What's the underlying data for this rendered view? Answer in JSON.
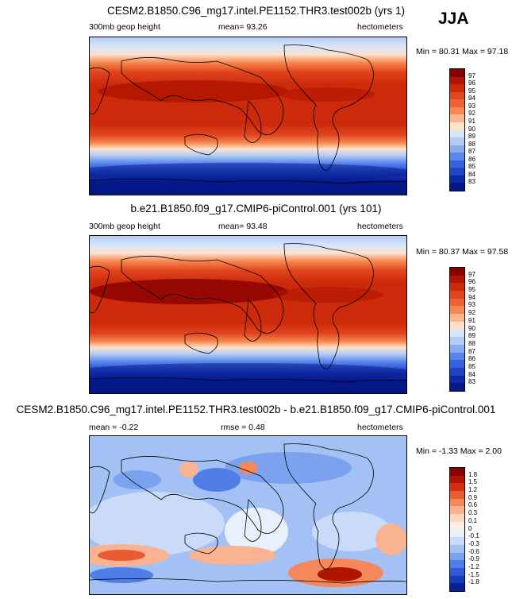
{
  "season": "JJA",
  "panels": [
    {
      "title": "CESM2.B1850.C96_mg17.intel.PE1152.THR3.test002b (yrs 1)",
      "left_label": "300mb geop height",
      "center_label": "mean=  93.26",
      "right_label": "hectometers",
      "minmax": "Min =  80.31 Max =  97.18",
      "colorbar": {
        "labels": [
          "97",
          "96",
          "95",
          "94",
          "93",
          "92",
          "91",
          "90",
          "89",
          "88",
          "87",
          "86",
          "85",
          "84",
          "83"
        ],
        "colors": [
          "#8a0000",
          "#b01500",
          "#cc2a0b",
          "#e0451d",
          "#f06235",
          "#f7884f",
          "#fbb68c",
          "#fde1cb",
          "#d7e6fa",
          "#b4cdf6",
          "#87acf0",
          "#5a86eb",
          "#3563e0",
          "#1e44c8",
          "#0c2aa5",
          "#041888"
        ]
      }
    },
    {
      "title": "b.e21.B1850.f09_g17.CMIP6-piControl.001 (yrs 101)",
      "left_label": "300mb geop height",
      "center_label": "mean=  93.48",
      "right_label": "hectometers",
      "minmax": "Min =  80.37 Max =  97.58",
      "colorbar": {
        "labels": [
          "97",
          "96",
          "95",
          "94",
          "93",
          "92",
          "91",
          "90",
          "89",
          "88",
          "87",
          "86",
          "85",
          "84",
          "83"
        ],
        "colors": [
          "#8a0000",
          "#b01500",
          "#cc2a0b",
          "#e0451d",
          "#f06235",
          "#f7884f",
          "#fbb68c",
          "#fde1cb",
          "#d7e6fa",
          "#b4cdf6",
          "#87acf0",
          "#5a86eb",
          "#3563e0",
          "#1e44c8",
          "#0c2aa5",
          "#041888"
        ]
      }
    },
    {
      "title": "CESM2.B1850.C96_mg17.intel.PE1152.THR3.test002b - b.e21.B1850.f09_g17.CMIP6-piControl.001",
      "left_label": "mean =  -0.22",
      "center_label": "rmse =   0.48",
      "right_label": "hectometers",
      "minmax": "Min =  -1.33 Max =   2.00",
      "colorbar": {
        "labels": [
          "1.8",
          "1.5",
          "1.2",
          "0.9",
          "0.6",
          "0.3",
          "0.1",
          "0",
          "-0.1",
          "-0.3",
          "-0.6",
          "-0.9",
          "-1.2",
          "-1.5",
          "-1.8"
        ],
        "colors": [
          "#8a0000",
          "#b01500",
          "#d42f12",
          "#ec5a30",
          "#f5875a",
          "#f9b391",
          "#fcd6c0",
          "#fdeee4",
          "#e8f0fc",
          "#c9dbf8",
          "#a3c1f4",
          "#7aa2ef",
          "#4f7ee8",
          "#2c5ad8",
          "#153bbd",
          "#062196"
        ]
      }
    }
  ]
}
